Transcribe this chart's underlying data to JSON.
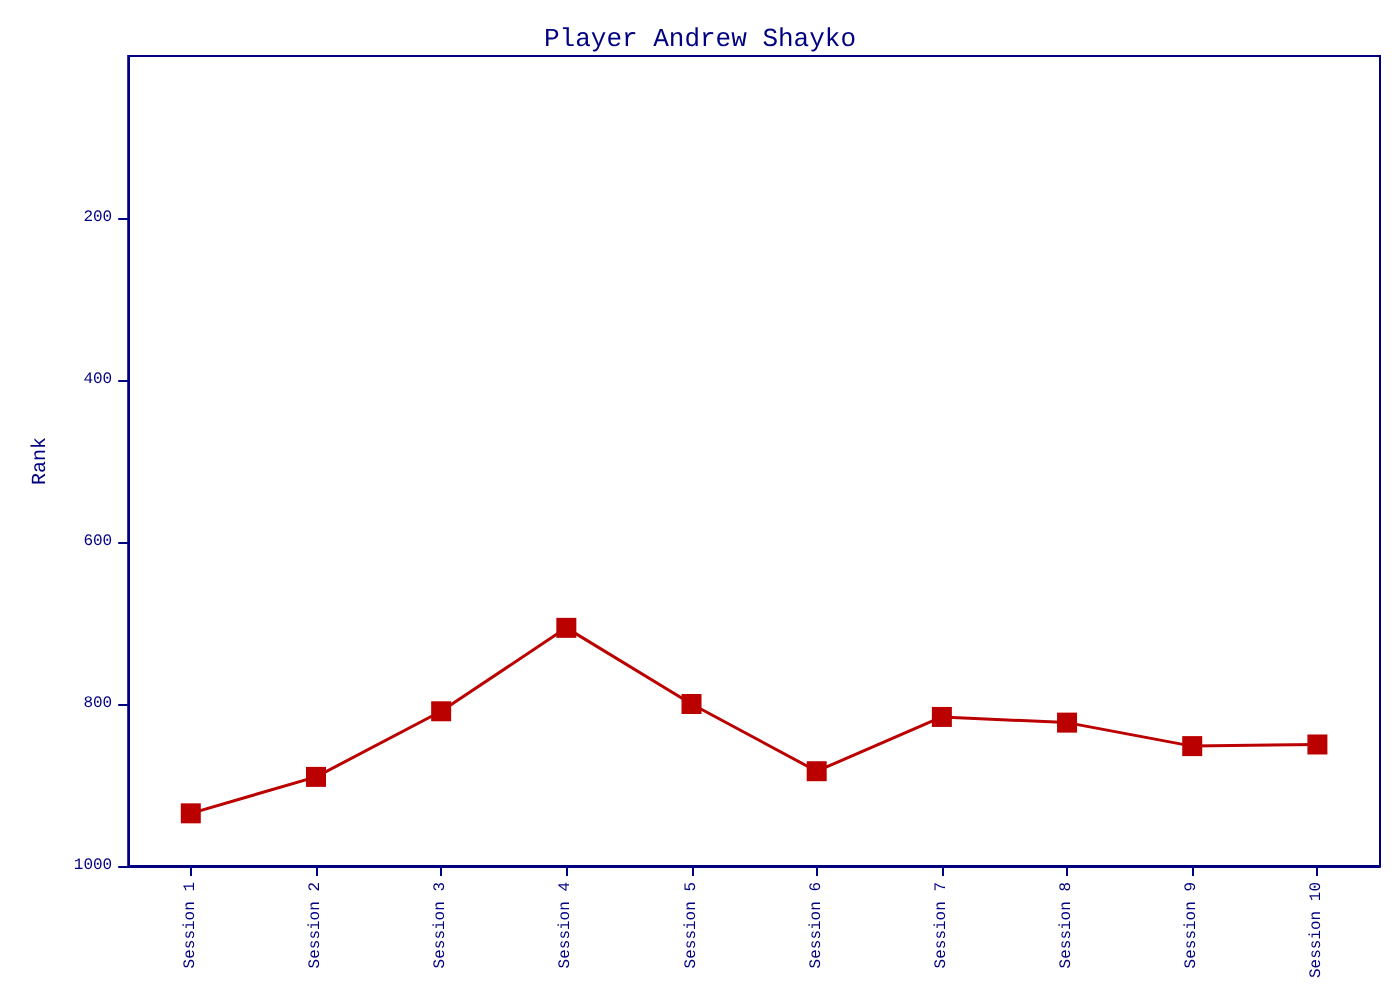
{
  "chart_data": {
    "type": "line",
    "title": "Player Andrew Shayko",
    "ylabel": "Rank",
    "categories": [
      "Session 1",
      "Session 2",
      "Session 3",
      "Session 4",
      "Session 5",
      "Session 6",
      "Session 7",
      "Session 8",
      "Session 9",
      "Session 10"
    ],
    "series": [
      {
        "color": "#bb0000",
        "values": [
          935,
          890,
          809,
          706,
          800,
          883,
          816,
          823,
          852,
          850
        ]
      }
    ],
    "ylim": [
      1000,
      0
    ],
    "yticks": [
      200,
      400,
      600,
      800,
      1000
    ],
    "grid": false,
    "marker": "square",
    "line_style": "solid"
  }
}
